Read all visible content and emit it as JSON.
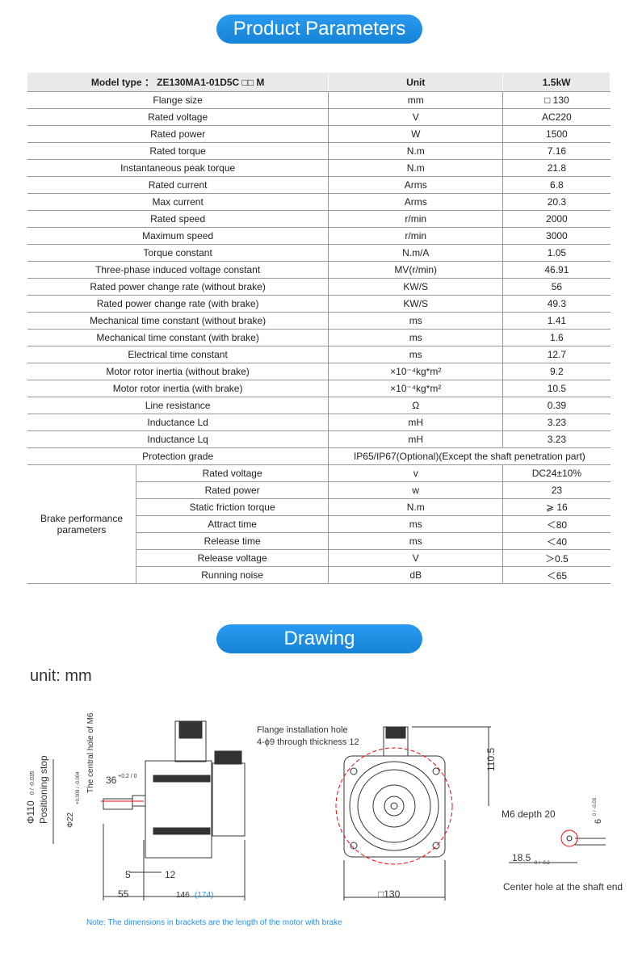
{
  "titles": {
    "params": "Product Parameters",
    "drawing": "Drawing"
  },
  "header": {
    "model": "Model type ： ZE130MA1-01D5C □□ M",
    "unit": "Unit",
    "value": "1.5kW"
  },
  "rows": [
    [
      "Flange size",
      "mm",
      "□ 130"
    ],
    [
      "Rated voltage",
      "V",
      "AC220"
    ],
    [
      "Rated power",
      "W",
      "1500"
    ],
    [
      "Rated torque",
      "N.m",
      "7.16"
    ],
    [
      "Instantaneous peak torque",
      "N.m",
      "21.8"
    ],
    [
      "Rated current",
      "Arms",
      "6.8"
    ],
    [
      "Max current",
      "Arms",
      "20.3"
    ],
    [
      "Rated speed",
      "r/min",
      "2000"
    ],
    [
      "Maximum speed",
      "r/min",
      "3000"
    ],
    [
      "Torque constant",
      "N.m/A",
      "1.05"
    ],
    [
      "Three-phase induced voltage constant",
      "MV(r/min)",
      "46.91"
    ],
    [
      "Rated power change rate (without brake)",
      "KW/S",
      "56"
    ],
    [
      "Rated power change rate (with brake)",
      "KW/S",
      "49.3"
    ],
    [
      "Mechanical time constant (without brake)",
      "ms",
      "1.41"
    ],
    [
      "Mechanical time constant (with brake)",
      "ms",
      "1.6"
    ],
    [
      "Electrical time constant",
      "ms",
      "12.7"
    ],
    [
      "Motor rotor inertia (without brake)",
      "×10⁻⁴kg*m²",
      "9.2"
    ],
    [
      "Motor rotor inertia (with brake)",
      "×10⁻⁴kg*m²",
      "10.5"
    ],
    [
      "Line resistance",
      "Ω",
      "0.39"
    ],
    [
      "Inductance Ld",
      "mH",
      "3.23"
    ],
    [
      "Inductance Lq",
      "mH",
      "3.23"
    ]
  ],
  "protection": {
    "label": "Protection grade",
    "value": "IP65/IP67(Optional)(Except the shaft penetration part)"
  },
  "brake": {
    "label": "Brake performance parameters",
    "rows": [
      [
        "Rated voltage",
        "v",
        "DC24±10%"
      ],
      [
        "Rated power",
        "w",
        "23"
      ],
      [
        "Static friction torque",
        "N.m",
        "⩾ 16"
      ],
      [
        "Attract time",
        "ms",
        "＜80"
      ],
      [
        "Release time",
        "ms",
        "＜40"
      ],
      [
        "Release voltage",
        "V",
        "＞0.5"
      ],
      [
        "Running noise",
        "dB",
        "＜65"
      ]
    ]
  },
  "drawing": {
    "unit": "unit: mm",
    "central_hole": "The central hole of M6",
    "d36": "36",
    "d36_tol": "+0.2 / 0",
    "phi110": "Φ110",
    "phi110_tol": "0 / -0.035",
    "positioning": "Positioning stop",
    "phi22": "Φ22",
    "phi22_tol": "+0.009 / -0.004",
    "d5": "5",
    "d12": "12",
    "d55": "55",
    "d146": "146",
    "d174": "(174)",
    "flange_hole": "Flange installation hole",
    "flange_hole2": "4-ϕ9 through thickness 12",
    "d110_5": "110.5",
    "d130": "□130",
    "m6": "M6 depth 20",
    "d6": "6",
    "d6_tol": "0 / -0.03",
    "d18_5": "18.5",
    "d18_5_tol": "0 / -0.2",
    "center_hole": "Center hole at the shaft end"
  },
  "note": "Note: The dimensions in brackets are the length of the motor with brake"
}
